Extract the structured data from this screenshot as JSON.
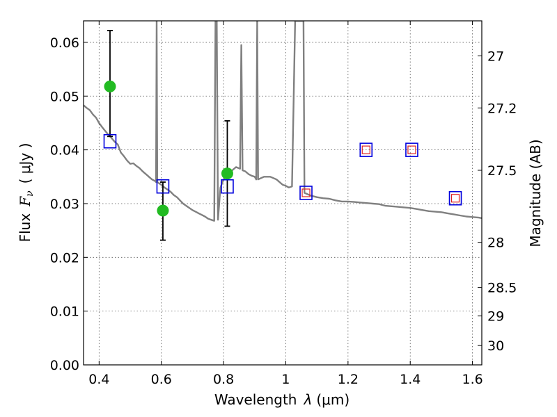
{
  "chart_data": {
    "type": "scatter",
    "xlabel_prefix": "Wavelength",
    "xlabel_symbol": "λ",
    "xlabel_unit": "(μm)",
    "ylabel_prefix": "Flux",
    "ylabel_symbol": "F",
    "ylabel_symbol_sub": "ν",
    "ylabel_unit": "( μJy )",
    "y2label": "Magnitude (AB)",
    "xlim": [
      0.35,
      1.63
    ],
    "ylim": [
      0.0,
      0.064
    ],
    "grid": true,
    "grid_style": "dotted",
    "x_ticks": [
      0.4,
      0.6,
      0.8,
      1.0,
      1.2,
      1.4,
      1.6
    ],
    "x_tick_labels": [
      "0.4",
      "0.6",
      "0.8",
      "1",
      "1.2",
      "1.4",
      "1.6"
    ],
    "y_ticks": [
      0.0,
      0.01,
      0.02,
      0.03,
      0.04,
      0.05,
      0.06
    ],
    "y_tick_labels": [
      "0.00",
      "0.01",
      "0.02",
      "0.03",
      "0.04",
      "0.05",
      "0.06"
    ],
    "y2_ticks": [
      {
        "label": "27",
        "flux": 0.0575
      },
      {
        "label": "27.2",
        "flux": 0.0478
      },
      {
        "label": "27.5",
        "flux": 0.0362
      },
      {
        "label": "28",
        "flux": 0.0228
      },
      {
        "label": "28.5",
        "flux": 0.0144
      },
      {
        "label": "29",
        "flux": 0.0091
      },
      {
        "label": "30",
        "flux": 0.0036
      }
    ],
    "colors": {
      "spectrum": "#808080",
      "observed": "#22bb22",
      "model_box": "#0000dd",
      "model_box_inner": "#dd2222",
      "errorbar": "#000000",
      "grid": "#555555"
    },
    "spectrum": [
      [
        0.35,
        0.0483
      ],
      [
        0.36,
        0.0478
      ],
      [
        0.37,
        0.0474
      ],
      [
        0.38,
        0.0466
      ],
      [
        0.39,
        0.046
      ],
      [
        0.4,
        0.045
      ],
      [
        0.41,
        0.0442
      ],
      [
        0.42,
        0.0435
      ],
      [
        0.43,
        0.0428
      ],
      [
        0.44,
        0.0422
      ],
      [
        0.45,
        0.0415
      ],
      [
        0.46,
        0.041
      ],
      [
        0.47,
        0.0395
      ],
      [
        0.48,
        0.0388
      ],
      [
        0.49,
        0.038
      ],
      [
        0.5,
        0.0374
      ],
      [
        0.51,
        0.0375
      ],
      [
        0.52,
        0.037
      ],
      [
        0.53,
        0.0366
      ],
      [
        0.54,
        0.036
      ],
      [
        0.55,
        0.0355
      ],
      [
        0.56,
        0.035
      ],
      [
        0.57,
        0.0345
      ],
      [
        0.58,
        0.0342
      ],
      [
        0.583,
        0.034
      ],
      [
        0.585,
        0.064
      ],
      [
        0.587,
        0.034
      ],
      [
        0.6,
        0.0335
      ],
      [
        0.61,
        0.033
      ],
      [
        0.62,
        0.0326
      ],
      [
        0.63,
        0.0322
      ],
      [
        0.64,
        0.0316
      ],
      [
        0.65,
        0.0312
      ],
      [
        0.66,
        0.0306
      ],
      [
        0.67,
        0.03
      ],
      [
        0.68,
        0.0296
      ],
      [
        0.69,
        0.0292
      ],
      [
        0.7,
        0.0288
      ],
      [
        0.71,
        0.0285
      ],
      [
        0.72,
        0.0282
      ],
      [
        0.73,
        0.0279
      ],
      [
        0.74,
        0.0276
      ],
      [
        0.75,
        0.0272
      ],
      [
        0.76,
        0.027
      ],
      [
        0.77,
        0.0268
      ],
      [
        0.774,
        0.064
      ],
      [
        0.778,
        0.064
      ],
      [
        0.782,
        0.027
      ],
      [
        0.79,
        0.033
      ],
      [
        0.8,
        0.0345
      ],
      [
        0.82,
        0.0358
      ],
      [
        0.84,
        0.0368
      ],
      [
        0.853,
        0.0365
      ],
      [
        0.857,
        0.0595
      ],
      [
        0.861,
        0.0362
      ],
      [
        0.87,
        0.036
      ],
      [
        0.88,
        0.0355
      ],
      [
        0.89,
        0.0352
      ],
      [
        0.9,
        0.035
      ],
      [
        0.905,
        0.0345
      ],
      [
        0.908,
        0.064
      ],
      [
        0.911,
        0.0345
      ],
      [
        0.93,
        0.035
      ],
      [
        0.95,
        0.035
      ],
      [
        0.97,
        0.0345
      ],
      [
        0.99,
        0.0335
      ],
      [
        1.0,
        0.0333
      ],
      [
        1.01,
        0.033
      ],
      [
        1.02,
        0.0332
      ],
      [
        1.03,
        0.064
      ],
      [
        1.057,
        0.064
      ],
      [
        1.06,
        0.032
      ],
      [
        1.08,
        0.0315
      ],
      [
        1.1,
        0.0312
      ],
      [
        1.12,
        0.031
      ],
      [
        1.14,
        0.0309
      ],
      [
        1.16,
        0.0306
      ],
      [
        1.18,
        0.0304
      ],
      [
        1.2,
        0.0304
      ],
      [
        1.22,
        0.0303
      ],
      [
        1.24,
        0.0302
      ],
      [
        1.26,
        0.0301
      ],
      [
        1.28,
        0.03
      ],
      [
        1.3,
        0.0299
      ],
      [
        1.32,
        0.0296
      ],
      [
        1.34,
        0.0295
      ],
      [
        1.36,
        0.0294
      ],
      [
        1.38,
        0.0293
      ],
      [
        1.4,
        0.0292
      ],
      [
        1.42,
        0.029
      ],
      [
        1.44,
        0.0288
      ],
      [
        1.46,
        0.0286
      ],
      [
        1.48,
        0.0285
      ],
      [
        1.5,
        0.0284
      ],
      [
        1.52,
        0.0282
      ],
      [
        1.54,
        0.028
      ],
      [
        1.56,
        0.0278
      ],
      [
        1.58,
        0.0276
      ],
      [
        1.6,
        0.0275
      ],
      [
        1.62,
        0.0274
      ],
      [
        1.63,
        0.0273
      ]
    ],
    "observed": [
      {
        "x": 0.435,
        "y": 0.0518,
        "yerr_low": 0.0425,
        "yerr_high": 0.0622
      },
      {
        "x": 0.605,
        "y": 0.0287,
        "yerr_low": 0.0232,
        "yerr_high": 0.034
      },
      {
        "x": 0.812,
        "y": 0.0356,
        "yerr_low": 0.0258,
        "yerr_high": 0.0454
      }
    ],
    "model_boxes": [
      {
        "x": 0.435,
        "y": 0.0416,
        "inner": false
      },
      {
        "x": 0.605,
        "y": 0.0332,
        "inner": false
      },
      {
        "x": 0.812,
        "y": 0.0332,
        "inner": false
      },
      {
        "x": 1.065,
        "y": 0.032,
        "inner": true
      },
      {
        "x": 1.258,
        "y": 0.04,
        "inner": true
      },
      {
        "x": 1.405,
        "y": 0.04,
        "inner": true
      },
      {
        "x": 1.545,
        "y": 0.031,
        "inner": true
      }
    ]
  }
}
